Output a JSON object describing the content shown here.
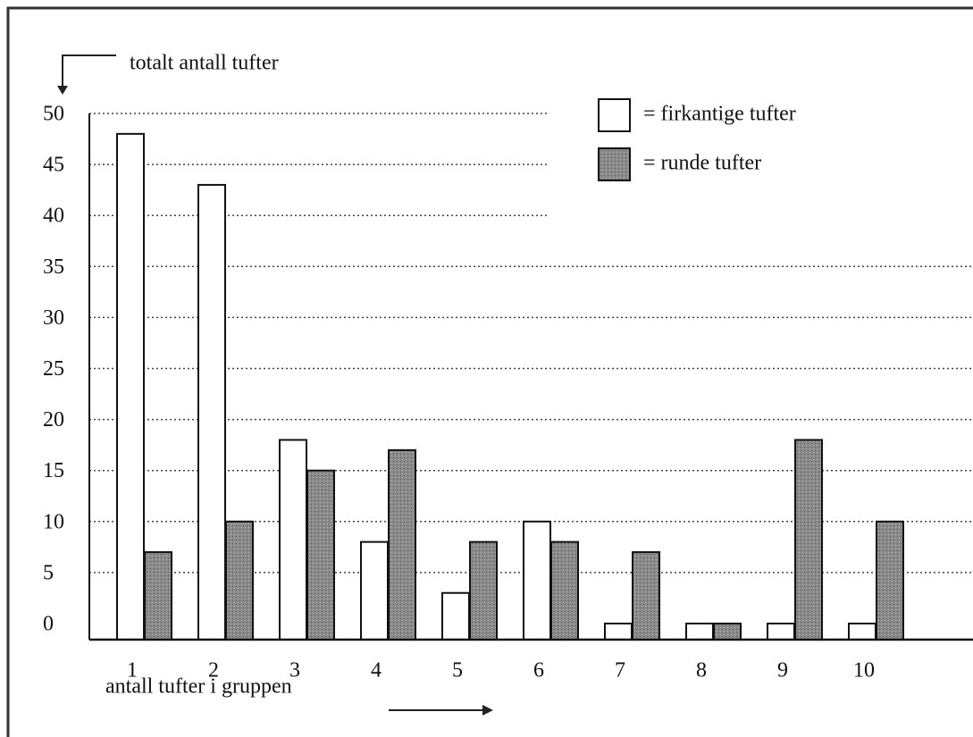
{
  "chart_data": {
    "type": "bar",
    "y_label": "totalt antall tufter",
    "x_label": "antall tufter i gruppen",
    "categories": [
      1,
      2,
      3,
      4,
      5,
      6,
      7,
      8,
      9,
      10
    ],
    "series": [
      {
        "name": "= firkantige tufter",
        "color": "#ffffff",
        "values": [
          48,
          43,
          18,
          8,
          3,
          10,
          0,
          0,
          0,
          0
        ]
      },
      {
        "name": "= runde tufter",
        "color": "#8a8a8a",
        "values": [
          7,
          10,
          15,
          17,
          8,
          8,
          7,
          0,
          18,
          10
        ]
      }
    ],
    "ylim": [
      0,
      50
    ],
    "yticks": [
      0,
      5,
      10,
      15,
      20,
      25,
      30,
      35,
      40,
      45,
      50
    ],
    "grid": true,
    "legend": "top-right"
  }
}
